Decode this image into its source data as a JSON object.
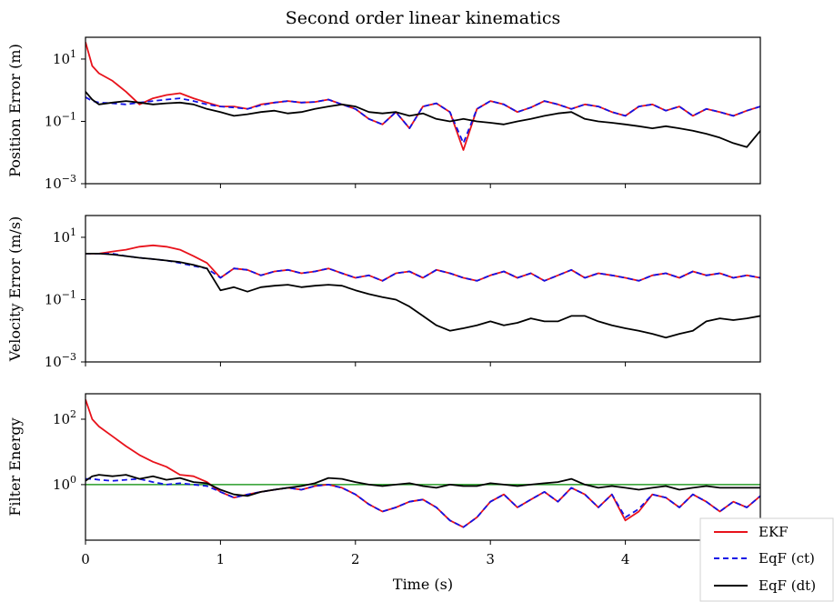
{
  "colors": {
    "ekf": "#e8121b",
    "eqf_ct": "#1212e6",
    "eqf_dt": "#000000",
    "reference": "#2a9d2a"
  },
  "chart_data": {
    "type": "line",
    "title": "Second order linear kinematics",
    "xlabel": "Time (s)",
    "xlim": [
      0,
      5
    ],
    "x_ticks": [
      "0",
      "1",
      "2",
      "3",
      "4"
    ],
    "x": [
      0.0,
      0.05,
      0.1,
      0.2,
      0.3,
      0.4,
      0.5,
      0.6,
      0.7,
      0.8,
      0.9,
      1.0,
      1.1,
      1.2,
      1.3,
      1.4,
      1.5,
      1.6,
      1.7,
      1.8,
      1.9,
      2.0,
      2.1,
      2.2,
      2.3,
      2.4,
      2.5,
      2.6,
      2.7,
      2.8,
      2.9,
      3.0,
      3.1,
      3.2,
      3.3,
      3.4,
      3.5,
      3.6,
      3.7,
      3.8,
      3.9,
      4.0,
      4.1,
      4.2,
      4.3,
      4.4,
      4.5,
      4.6,
      4.7,
      4.8,
      4.9,
      5.0
    ],
    "legend": {
      "entries": [
        "EKF",
        "EqF (ct)",
        "EqF (dt)"
      ],
      "placement": "bottom-right"
    },
    "panels": [
      {
        "ylabel": "Position Error (m)",
        "yscale": "log",
        "ylim": [
          0.001,
          50
        ],
        "y_ticks": [
          {
            "base": "10",
            "exp": "1",
            "value": 10
          },
          {
            "base": "10",
            "exp": "−1",
            "value": 0.1
          },
          {
            "base": "10",
            "exp": "−3",
            "value": 0.001
          }
        ],
        "series": [
          {
            "name": "EKF",
            "style": "solid",
            "values": [
              35,
              6,
              3.5,
              2,
              0.9,
              0.35,
              0.55,
              0.7,
              0.8,
              0.55,
              0.4,
              0.3,
              0.3,
              0.25,
              0.35,
              0.4,
              0.45,
              0.4,
              0.42,
              0.5,
              0.35,
              0.25,
              0.12,
              0.08,
              0.2,
              0.06,
              0.3,
              0.38,
              0.2,
              0.012,
              0.25,
              0.45,
              0.35,
              0.2,
              0.28,
              0.45,
              0.35,
              0.25,
              0.35,
              0.3,
              0.2,
              0.15,
              0.3,
              0.35,
              0.22,
              0.3,
              0.15,
              0.25,
              0.2,
              0.15,
              0.22,
              0.3
            ]
          },
          {
            "name": "EqF (ct)",
            "style": "dashed",
            "values": [
              0.6,
              0.45,
              0.4,
              0.38,
              0.35,
              0.4,
              0.45,
              0.5,
              0.55,
              0.45,
              0.35,
              0.3,
              0.28,
              0.25,
              0.33,
              0.4,
              0.45,
              0.4,
              0.42,
              0.5,
              0.35,
              0.25,
              0.12,
              0.08,
              0.2,
              0.06,
              0.3,
              0.38,
              0.2,
              0.02,
              0.25,
              0.45,
              0.35,
              0.2,
              0.28,
              0.45,
              0.35,
              0.25,
              0.35,
              0.3,
              0.2,
              0.15,
              0.3,
              0.35,
              0.22,
              0.3,
              0.15,
              0.25,
              0.2,
              0.15,
              0.22,
              0.3
            ]
          },
          {
            "name": "EqF (dt)",
            "style": "solid",
            "values": [
              0.9,
              0.5,
              0.35,
              0.4,
              0.45,
              0.4,
              0.35,
              0.38,
              0.4,
              0.35,
              0.25,
              0.2,
              0.15,
              0.17,
              0.2,
              0.22,
              0.18,
              0.2,
              0.25,
              0.3,
              0.35,
              0.3,
              0.2,
              0.18,
              0.2,
              0.15,
              0.18,
              0.12,
              0.1,
              0.12,
              0.1,
              0.09,
              0.08,
              0.1,
              0.12,
              0.15,
              0.18,
              0.2,
              0.12,
              0.1,
              0.09,
              0.08,
              0.07,
              0.06,
              0.07,
              0.06,
              0.05,
              0.04,
              0.03,
              0.02,
              0.015,
              0.05
            ]
          }
        ]
      },
      {
        "ylabel": "Velocity Error (m/s)",
        "yscale": "log",
        "ylim": [
          0.001,
          50
        ],
        "y_ticks": [
          {
            "base": "10",
            "exp": "1",
            "value": 10
          },
          {
            "base": "10",
            "exp": "−1",
            "value": 0.1
          },
          {
            "base": "10",
            "exp": "−3",
            "value": 0.001
          }
        ],
        "series": [
          {
            "name": "EKF",
            "style": "solid",
            "values": [
              3,
              3,
              3,
              3.5,
              4,
              5,
              5.5,
              5,
              4,
              2.5,
              1.5,
              0.5,
              1,
              0.9,
              0.6,
              0.8,
              0.9,
              0.7,
              0.8,
              1,
              0.7,
              0.5,
              0.6,
              0.4,
              0.7,
              0.8,
              0.5,
              0.9,
              0.7,
              0.5,
              0.4,
              0.6,
              0.8,
              0.5,
              0.7,
              0.4,
              0.6,
              0.9,
              0.5,
              0.7,
              0.6,
              0.5,
              0.4,
              0.6,
              0.7,
              0.5,
              0.8,
              0.6,
              0.7,
              0.5,
              0.6,
              0.5
            ]
          },
          {
            "name": "EqF (ct)",
            "style": "dashed",
            "values": [
              3,
              3,
              3,
              3,
              2.5,
              2.2,
              2,
              1.8,
              1.5,
              1.2,
              1,
              0.5,
              1,
              0.9,
              0.6,
              0.8,
              0.9,
              0.7,
              0.8,
              1,
              0.7,
              0.5,
              0.6,
              0.4,
              0.7,
              0.8,
              0.5,
              0.9,
              0.7,
              0.5,
              0.4,
              0.6,
              0.8,
              0.5,
              0.7,
              0.4,
              0.6,
              0.9,
              0.5,
              0.7,
              0.6,
              0.5,
              0.4,
              0.6,
              0.7,
              0.5,
              0.8,
              0.6,
              0.7,
              0.5,
              0.6,
              0.5
            ]
          },
          {
            "name": "EqF (dt)",
            "style": "solid",
            "values": [
              3,
              3,
              3,
              2.8,
              2.5,
              2.2,
              2,
              1.8,
              1.6,
              1.3,
              1,
              0.2,
              0.25,
              0.18,
              0.25,
              0.28,
              0.3,
              0.25,
              0.28,
              0.3,
              0.28,
              0.2,
              0.15,
              0.12,
              0.1,
              0.06,
              0.03,
              0.015,
              0.01,
              0.012,
              0.015,
              0.02,
              0.015,
              0.018,
              0.025,
              0.02,
              0.02,
              0.03,
              0.03,
              0.02,
              0.015,
              0.012,
              0.01,
              0.008,
              0.006,
              0.008,
              0.01,
              0.02,
              0.025,
              0.022,
              0.025,
              0.03
            ]
          }
        ]
      },
      {
        "ylabel": "Filter Energy",
        "yscale": "log",
        "ylim": [
          0.02,
          600
        ],
        "reference_line": 1,
        "y_ticks": [
          {
            "base": "10",
            "exp": "2",
            "value": 100
          },
          {
            "base": "10",
            "exp": "0",
            "value": 1
          }
        ],
        "series": [
          {
            "name": "EKF",
            "style": "solid",
            "values": [
              400,
              100,
              60,
              30,
              15,
              8,
              5,
              3.5,
              2,
              1.8,
              1.2,
              0.6,
              0.4,
              0.5,
              0.6,
              0.7,
              0.8,
              0.7,
              0.9,
              1,
              0.8,
              0.5,
              0.25,
              0.15,
              0.2,
              0.3,
              0.35,
              0.2,
              0.08,
              0.05,
              0.1,
              0.3,
              0.5,
              0.2,
              0.35,
              0.6,
              0.3,
              0.8,
              0.5,
              0.2,
              0.5,
              0.08,
              0.15,
              0.5,
              0.4,
              0.2,
              0.5,
              0.3,
              0.15,
              0.3,
              0.2,
              0.45
            ]
          },
          {
            "name": "EqF (ct)",
            "style": "dashed",
            "values": [
              1.5,
              1.5,
              1.4,
              1.3,
              1.4,
              1.5,
              1.2,
              1.0,
              1.1,
              1.0,
              0.9,
              0.6,
              0.4,
              0.5,
              0.6,
              0.7,
              0.8,
              0.7,
              0.9,
              1,
              0.8,
              0.5,
              0.25,
              0.15,
              0.2,
              0.3,
              0.35,
              0.2,
              0.08,
              0.05,
              0.1,
              0.3,
              0.5,
              0.2,
              0.35,
              0.6,
              0.3,
              0.8,
              0.5,
              0.2,
              0.5,
              0.1,
              0.18,
              0.5,
              0.4,
              0.2,
              0.5,
              0.3,
              0.15,
              0.3,
              0.2,
              0.45
            ]
          },
          {
            "name": "EqF (dt)",
            "style": "solid",
            "values": [
              1.3,
              1.8,
              2,
              1.8,
              2,
              1.5,
              1.8,
              1.4,
              1.6,
              1.2,
              1.1,
              0.7,
              0.5,
              0.45,
              0.6,
              0.7,
              0.8,
              0.9,
              1.1,
              1.6,
              1.5,
              1.2,
              1,
              0.9,
              1,
              1.1,
              0.9,
              0.8,
              1,
              0.9,
              0.9,
              1.1,
              1,
              0.9,
              1,
              1.1,
              1.2,
              1.5,
              1,
              0.8,
              0.9,
              0.8,
              0.7,
              0.8,
              0.9,
              0.7,
              0.8,
              0.9,
              0.8,
              0.8,
              0.8,
              0.8
            ]
          }
        ]
      }
    ]
  }
}
